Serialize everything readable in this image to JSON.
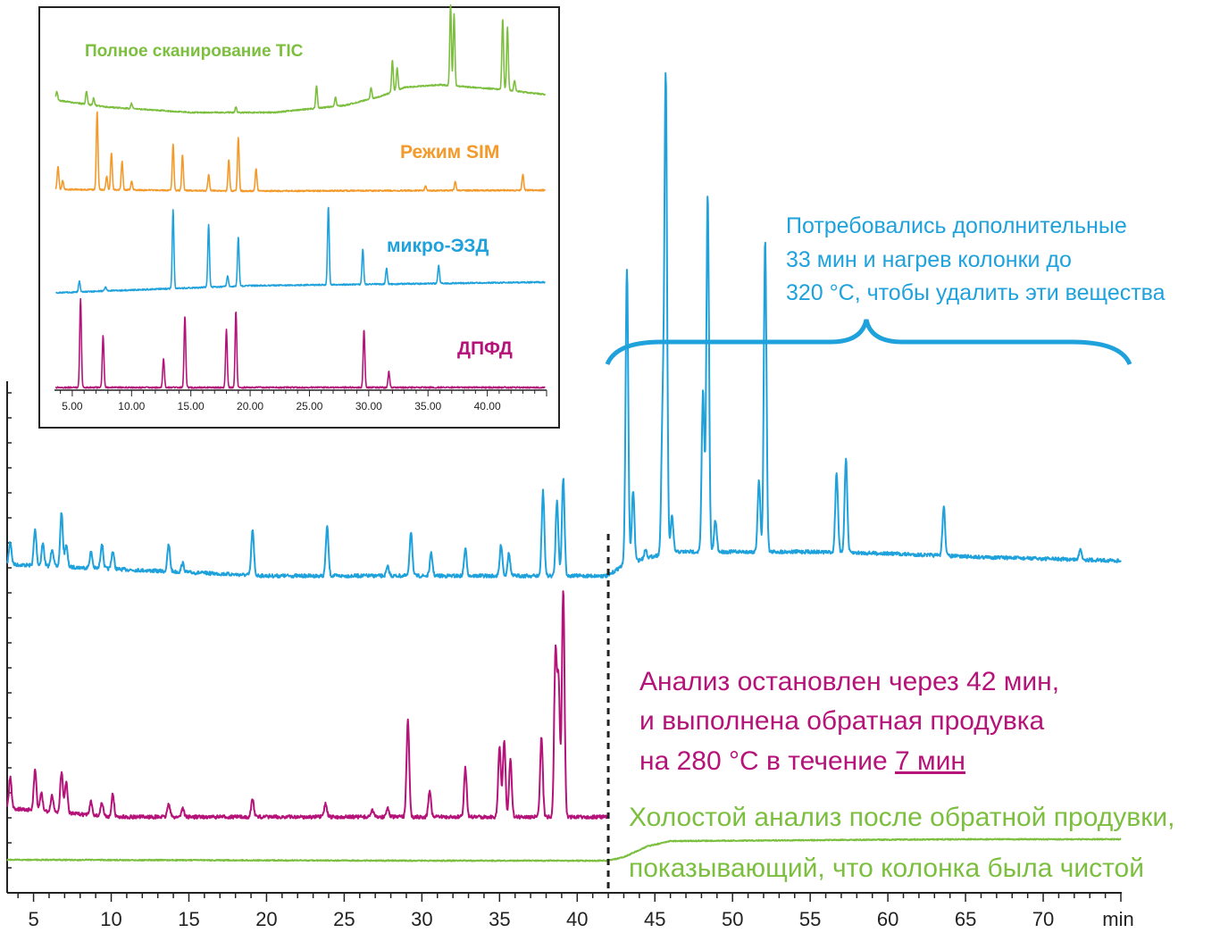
{
  "colors": {
    "blue": "#1fa2dc",
    "magenta": "#b5137a",
    "green": "#7cbf3f",
    "orange": "#f39a2b",
    "axis": "#222222"
  },
  "chart_data": [
    {
      "type": "line",
      "xlabel": "min",
      "xlim": [
        3.3,
        75
      ],
      "x_ticks": [
        "5",
        "10",
        "15",
        "20",
        "25",
        "30",
        "35",
        "40",
        "45",
        "50",
        "55",
        "60",
        "65",
        "70"
      ],
      "x_tick_values": [
        5,
        10,
        15,
        20,
        25,
        30,
        35,
        40,
        45,
        50,
        55,
        60,
        65,
        70
      ],
      "stop_line_x": 42,
      "series": [
        {
          "color": "#1fa2dc",
          "baseline": [
            [
              3.3,
              632
            ],
            [
              20,
              645
            ],
            [
              35,
              645
            ],
            [
              42,
              645
            ],
            [
              43,
              632
            ],
            [
              46,
              618
            ],
            [
              55,
              618
            ],
            [
              60,
              620
            ],
            [
              66,
              624
            ],
            [
              75,
              628
            ]
          ],
          "peaks": [
            [
              3.5,
              25
            ],
            [
              5.1,
              40
            ],
            [
              5.6,
              25
            ],
            [
              6.2,
              20
            ],
            [
              6.8,
              60
            ],
            [
              7.1,
              25
            ],
            [
              8.7,
              18
            ],
            [
              9.4,
              28
            ],
            [
              10.1,
              20
            ],
            [
              13.7,
              30
            ],
            [
              14.6,
              10
            ],
            [
              19.1,
              50
            ],
            [
              23.9,
              55
            ],
            [
              27.8,
              10
            ],
            [
              29.3,
              50
            ],
            [
              30.6,
              25
            ],
            [
              32.8,
              30
            ],
            [
              35.1,
              35
            ],
            [
              35.6,
              25
            ],
            [
              37.8,
              95
            ],
            [
              38.7,
              85
            ],
            [
              39.1,
              110
            ],
            [
              43.2,
              330
            ],
            [
              43.6,
              80
            ],
            [
              44.4,
              10
            ],
            [
              45.5,
              150
            ],
            [
              45.7,
              530
            ],
            [
              46.1,
              40
            ],
            [
              48.1,
              180
            ],
            [
              48.4,
              400
            ],
            [
              48.9,
              35
            ],
            [
              51.7,
              80
            ],
            [
              52.1,
              350
            ],
            [
              56.7,
              90
            ],
            [
              57.3,
              105
            ],
            [
              63.6,
              55
            ],
            [
              72.4,
              12
            ]
          ]
        },
        {
          "color": "#b5137a",
          "baseline": [
            [
              3.3,
              905
            ],
            [
              10,
              915
            ],
            [
              30,
              915
            ],
            [
              42,
              915
            ]
          ],
          "peaks": [
            [
              3.5,
              35
            ],
            [
              5.1,
              45
            ],
            [
              5.5,
              20
            ],
            [
              6.2,
              18
            ],
            [
              6.8,
              45
            ],
            [
              7.1,
              35
            ],
            [
              8.7,
              15
            ],
            [
              9.4,
              15
            ],
            [
              10.1,
              25
            ],
            [
              13.7,
              15
            ],
            [
              14.6,
              10
            ],
            [
              19.1,
              20
            ],
            [
              23.8,
              15
            ],
            [
              26.8,
              8
            ],
            [
              27.8,
              10
            ],
            [
              29.1,
              110
            ],
            [
              30.5,
              30
            ],
            [
              32.8,
              55
            ],
            [
              35.0,
              80
            ],
            [
              35.3,
              85
            ],
            [
              35.7,
              65
            ],
            [
              37.7,
              90
            ],
            [
              38.6,
              180
            ],
            [
              38.8,
              150
            ],
            [
              39.1,
              255
            ]
          ]
        },
        {
          "color": "#7cbf3f",
          "baseline": [
            [
              3.3,
              963
            ],
            [
              30,
              964
            ],
            [
              42,
              964
            ],
            [
              43,
              960
            ],
            [
              44.5,
              948
            ],
            [
              46,
              942
            ],
            [
              55,
              941
            ],
            [
              65,
              940
            ],
            [
              75,
              940
            ]
          ],
          "peaks": []
        }
      ]
    },
    {
      "type": "line",
      "title": "inset",
      "xlim": [
        3.5,
        45
      ],
      "x_ticks": [
        "5.00",
        "10.00",
        "15.00",
        "20.00",
        "25.00",
        "30.00",
        "35.00",
        "40.00"
      ],
      "x_tick_values": [
        5,
        10,
        15,
        20,
        25,
        30,
        35,
        40
      ],
      "series": [
        {
          "name": "Полное сканирование TIC",
          "color": "#7cbf3f",
          "baseline": [
            [
              3.5,
              112
            ],
            [
              8,
              120
            ],
            [
              15,
              126
            ],
            [
              22,
              126
            ],
            [
              28,
              118
            ],
            [
              31,
              108
            ],
            [
              33,
              98
            ],
            [
              36,
              95
            ],
            [
              39,
              98
            ],
            [
              41,
              100
            ],
            [
              45,
              106
            ]
          ],
          "peaks": [
            [
              3.7,
              10
            ],
            [
              6.2,
              15
            ],
            [
              6.8,
              8
            ],
            [
              10,
              6
            ],
            [
              18.8,
              6
            ],
            [
              25.6,
              25
            ],
            [
              27.2,
              10
            ],
            [
              30.2,
              12
            ],
            [
              32.0,
              35
            ],
            [
              32.4,
              25
            ],
            [
              36.9,
              90
            ],
            [
              37.2,
              80
            ],
            [
              41.3,
              80
            ],
            [
              41.7,
              70
            ],
            [
              42.3,
              12
            ]
          ]
        },
        {
          "name": "Режим SIM",
          "color": "#f39a2b",
          "baseline": [
            [
              3.5,
              212
            ],
            [
              20,
              214
            ],
            [
              45,
              213
            ]
          ],
          "peaks": [
            [
              3.8,
              26
            ],
            [
              4.2,
              10
            ],
            [
              7.1,
              88
            ],
            [
              7.9,
              15
            ],
            [
              8.3,
              42
            ],
            [
              9.2,
              32
            ],
            [
              10.0,
              10
            ],
            [
              13.5,
              52
            ],
            [
              14.3,
              40
            ],
            [
              16.5,
              18
            ],
            [
              18.2,
              35
            ],
            [
              19.0,
              60
            ],
            [
              20.5,
              25
            ],
            [
              34.8,
              5
            ],
            [
              37.3,
              10
            ],
            [
              43.0,
              18
            ]
          ]
        },
        {
          "color": "#1fa2dc",
          "baseline": [
            [
              3.5,
              328
            ],
            [
              20,
              320
            ],
            [
              45,
              316
            ]
          ],
          "peaks": [
            [
              5.6,
              12
            ],
            [
              7.8,
              5
            ],
            [
              13.5,
              88
            ],
            [
              16.5,
              70
            ],
            [
              18.1,
              12
            ],
            [
              19.0,
              55
            ],
            [
              26.6,
              88
            ],
            [
              29.5,
              40
            ],
            [
              31.5,
              18
            ],
            [
              35.9,
              20
            ]
          ]
        },
        {
          "name": "ДПФД",
          "color": "#b5137a",
          "baseline": [
            [
              3.5,
              434
            ],
            [
              45,
              434
            ]
          ],
          "peaks": [
            [
              5.7,
              100
            ],
            [
              7.6,
              58
            ],
            [
              12.7,
              32
            ],
            [
              14.5,
              80
            ],
            [
              18.0,
              65
            ],
            [
              18.8,
              86
            ],
            [
              29.6,
              65
            ],
            [
              31.7,
              18
            ]
          ]
        }
      ]
    }
  ],
  "labels": {
    "tic": "Полное сканирование TIC",
    "sim": "Режим SIM",
    "ecd": "микро-ЭЗД",
    "fpd": "ДПФД",
    "blue_note": [
      "Потребовались дополнительные",
      "33 мин и нагрев колонки до",
      "320 °С, чтобы удалить эти вещества"
    ],
    "magenta_note_1": "Анализ остановлен через 42 мин,",
    "magenta_note_2": "и выполнена обратная продувка",
    "magenta_note_3_pre": "на 280 °С в течение ",
    "magenta_note_3_u": "7 мин",
    "green_note": [
      "Холостой анализ после обратной продувки,",
      "показывающий, что колонка была чистой"
    ]
  }
}
